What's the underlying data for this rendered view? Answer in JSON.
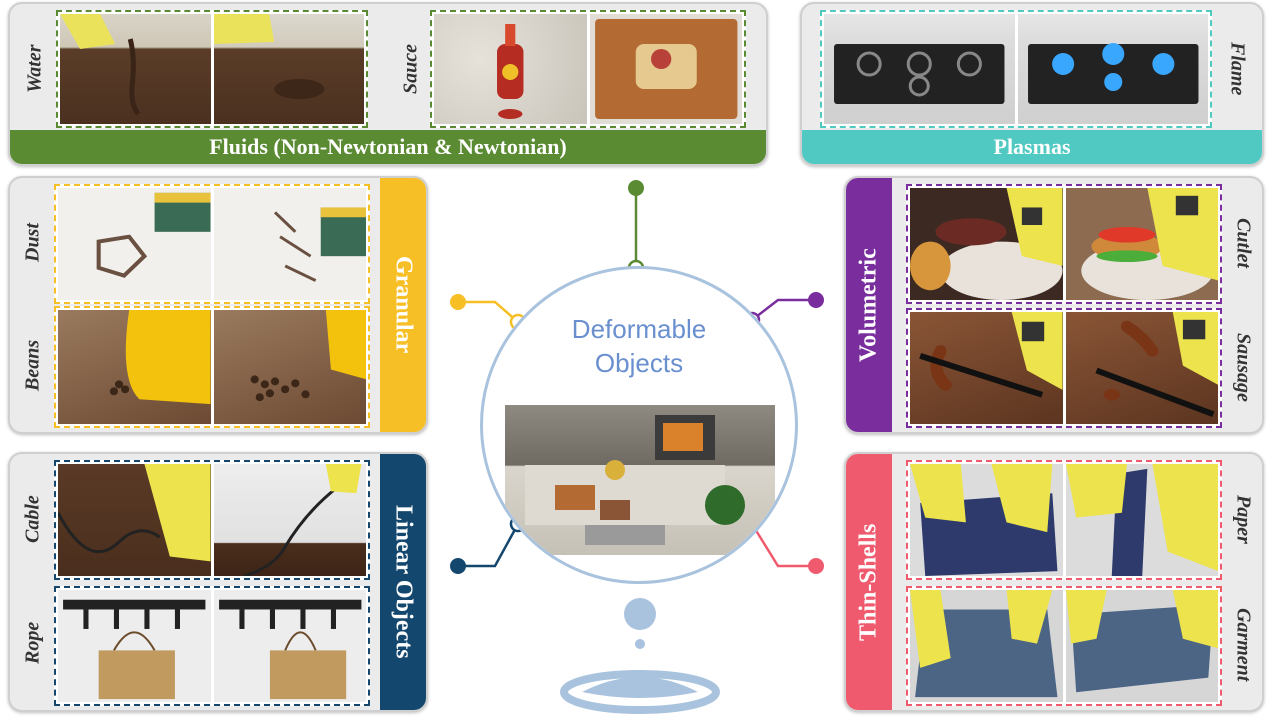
{
  "center": {
    "title_line1": "Deformable",
    "title_line2": "Objects"
  },
  "categories": {
    "fluids": {
      "label": "Fluids (Non-Newtonian & Newtonian)",
      "color": "#5a8a32",
      "items": [
        "Water",
        "Sauce"
      ]
    },
    "plasmas": {
      "label": "Plasmas",
      "color": "#4fc9c1",
      "items": [
        "Flame"
      ]
    },
    "granular": {
      "label": "Granular",
      "color": "#f6bf26",
      "items": [
        "Dust",
        "Beans"
      ]
    },
    "volumetric": {
      "label": "Volumetric",
      "color": "#7a2e9e",
      "items": [
        "Cutlet",
        "Sausage"
      ]
    },
    "linear": {
      "label": "Linear Objects",
      "color": "#13476e",
      "items": [
        "Cable",
        "Rope"
      ]
    },
    "thinshells": {
      "label": "Thin-Shells",
      "color": "#f05a6e",
      "items": [
        "Paper",
        "Garment"
      ]
    }
  },
  "icons": {
    "center": "water-drop-icon"
  }
}
